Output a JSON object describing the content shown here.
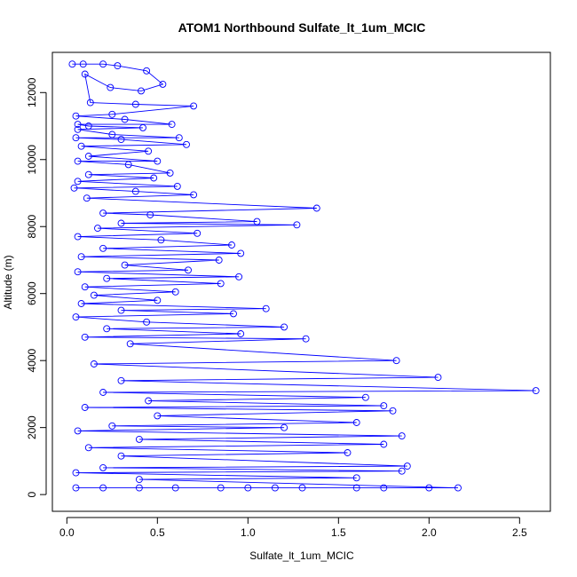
{
  "chart_data": {
    "type": "line",
    "title": "ATOM1 Northbound Sulfate_lt_1um_MCIC",
    "xlabel": "Sulfate_lt_1um_MCIC",
    "ylabel": "Altitude (m)",
    "xlim": [
      -0.08,
      2.67
    ],
    "ylim": [
      -500,
      13200
    ],
    "xticks": [
      0.0,
      0.5,
      1.0,
      1.5,
      2.0,
      2.5
    ],
    "xtick_labels": [
      "0.0",
      "0.5",
      "1.0",
      "1.5",
      "2.0",
      "2.5"
    ],
    "yticks": [
      0,
      2000,
      4000,
      6000,
      8000,
      10000,
      12000
    ],
    "ytick_labels": [
      "0",
      "2000",
      "4000",
      "6000",
      "8000",
      "10000",
      "12000"
    ],
    "marker": "open-circle",
    "grid": false,
    "colors": {
      "series": "#0000ff",
      "axis": "#000000"
    },
    "series": [
      {
        "values": [
          [
            0.03,
            12850
          ],
          [
            0.09,
            12850
          ],
          [
            0.2,
            12850
          ],
          [
            0.28,
            12800
          ],
          [
            0.44,
            12650
          ],
          [
            0.53,
            12250
          ],
          [
            0.41,
            12050
          ],
          [
            0.24,
            12150
          ],
          [
            0.1,
            12550
          ],
          [
            0.13,
            11700
          ],
          [
            0.38,
            11650
          ],
          [
            0.7,
            11600
          ],
          [
            0.25,
            11350
          ],
          [
            0.05,
            11300
          ],
          [
            0.32,
            11200
          ],
          [
            0.58,
            11050
          ],
          [
            0.06,
            11050
          ],
          [
            0.12,
            11000
          ],
          [
            0.42,
            10950
          ],
          [
            0.06,
            10900
          ],
          [
            0.25,
            10750
          ],
          [
            0.62,
            10650
          ],
          [
            0.05,
            10650
          ],
          [
            0.3,
            10600
          ],
          [
            0.66,
            10450
          ],
          [
            0.08,
            10400
          ],
          [
            0.45,
            10250
          ],
          [
            0.12,
            10100
          ],
          [
            0.5,
            9950
          ],
          [
            0.06,
            9950
          ],
          [
            0.34,
            9850
          ],
          [
            0.57,
            9600
          ],
          [
            0.12,
            9550
          ],
          [
            0.48,
            9450
          ],
          [
            0.06,
            9350
          ],
          [
            0.61,
            9200
          ],
          [
            0.04,
            9150
          ],
          [
            0.38,
            9050
          ],
          [
            0.7,
            8950
          ],
          [
            0.11,
            8850
          ],
          [
            1.38,
            8550
          ],
          [
            0.2,
            8400
          ],
          [
            0.46,
            8350
          ],
          [
            1.05,
            8150
          ],
          [
            0.3,
            8100
          ],
          [
            1.27,
            8050
          ],
          [
            0.17,
            7950
          ],
          [
            0.72,
            7800
          ],
          [
            0.06,
            7700
          ],
          [
            0.52,
            7600
          ],
          [
            0.91,
            7450
          ],
          [
            0.2,
            7350
          ],
          [
            0.96,
            7200
          ],
          [
            0.08,
            7100
          ],
          [
            0.84,
            7000
          ],
          [
            0.32,
            6850
          ],
          [
            0.67,
            6700
          ],
          [
            0.06,
            6650
          ],
          [
            0.95,
            6500
          ],
          [
            0.22,
            6450
          ],
          [
            0.85,
            6300
          ],
          [
            0.1,
            6200
          ],
          [
            0.6,
            6050
          ],
          [
            0.15,
            5950
          ],
          [
            0.5,
            5800
          ],
          [
            0.08,
            5700
          ],
          [
            1.1,
            5550
          ],
          [
            0.3,
            5500
          ],
          [
            0.92,
            5400
          ],
          [
            0.05,
            5300
          ],
          [
            0.44,
            5150
          ],
          [
            1.2,
            5000
          ],
          [
            0.22,
            4950
          ],
          [
            0.96,
            4800
          ],
          [
            0.1,
            4700
          ],
          [
            1.32,
            4650
          ],
          [
            0.35,
            4500
          ],
          [
            1.82,
            4000
          ],
          [
            0.15,
            3900
          ],
          [
            2.05,
            3500
          ],
          [
            0.3,
            3400
          ],
          [
            2.59,
            3100
          ],
          [
            0.2,
            3050
          ],
          [
            1.65,
            2900
          ],
          [
            0.45,
            2800
          ],
          [
            1.75,
            2650
          ],
          [
            0.1,
            2600
          ],
          [
            1.8,
            2500
          ],
          [
            0.5,
            2350
          ],
          [
            1.6,
            2150
          ],
          [
            0.25,
            2050
          ],
          [
            1.2,
            2000
          ],
          [
            0.06,
            1900
          ],
          [
            1.85,
            1750
          ],
          [
            0.4,
            1650
          ],
          [
            1.75,
            1500
          ],
          [
            0.12,
            1400
          ],
          [
            1.55,
            1250
          ],
          [
            0.3,
            1150
          ],
          [
            1.88,
            850
          ],
          [
            0.2,
            800
          ],
          [
            1.85,
            700
          ],
          [
            0.05,
            650
          ],
          [
            1.6,
            500
          ],
          [
            0.4,
            450
          ],
          [
            2.16,
            200
          ],
          [
            2.0,
            200
          ],
          [
            1.75,
            200
          ],
          [
            1.6,
            200
          ],
          [
            1.3,
            200
          ],
          [
            1.15,
            200
          ],
          [
            1.0,
            200
          ],
          [
            0.85,
            200
          ],
          [
            0.6,
            200
          ],
          [
            0.4,
            200
          ],
          [
            0.2,
            200
          ],
          [
            0.05,
            200
          ]
        ]
      }
    ]
  }
}
